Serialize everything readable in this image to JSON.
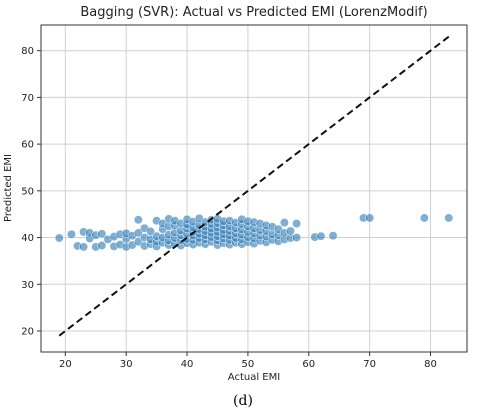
{
  "chart_data": {
    "type": "scatter",
    "title": "Bagging (SVR): Actual vs Predicted EMI (LorenzModif)",
    "xlabel": "Actual EMI",
    "ylabel": "Predicted EMI",
    "xlim": [
      16,
      86
    ],
    "ylim": [
      15.5,
      85.5
    ],
    "xticks": [
      20,
      30,
      40,
      50,
      60,
      70,
      80
    ],
    "yticks": [
      20,
      30,
      40,
      50,
      60,
      70,
      80
    ],
    "grid": true,
    "caption": "(d)",
    "point_color": "#2a78b5",
    "reference_line": {
      "style": "dashed",
      "color": "#111111",
      "x": [
        19,
        83
      ],
      "y": [
        19,
        83
      ]
    },
    "points": [
      [
        19,
        39.9
      ],
      [
        21,
        40.7
      ],
      [
        22,
        38.2
      ],
      [
        23,
        38.0
      ],
      [
        23,
        41.2
      ],
      [
        24,
        39.8
      ],
      [
        24,
        41.0
      ],
      [
        25,
        38.0
      ],
      [
        25,
        40.5
      ],
      [
        26,
        38.3
      ],
      [
        26,
        40.8
      ],
      [
        27,
        39.6
      ],
      [
        28,
        38.1
      ],
      [
        28,
        40.2
      ],
      [
        29,
        38.5
      ],
      [
        29,
        40.7
      ],
      [
        30,
        38.0
      ],
      [
        30,
        39.7
      ],
      [
        30,
        40.9
      ],
      [
        31,
        38.4
      ],
      [
        31,
        40.4
      ],
      [
        32,
        39.1
      ],
      [
        32,
        41.0
      ],
      [
        32,
        43.8
      ],
      [
        33,
        38.2
      ],
      [
        33,
        40.0
      ],
      [
        33,
        42.0
      ],
      [
        34,
        38.6
      ],
      [
        34,
        39.6
      ],
      [
        34,
        41.3
      ],
      [
        35,
        38.1
      ],
      [
        35,
        39.1
      ],
      [
        35,
        40.3
      ],
      [
        35,
        43.6
      ],
      [
        36,
        38.9
      ],
      [
        36,
        40.0
      ],
      [
        36,
        41.8
      ],
      [
        36,
        43.0
      ],
      [
        37,
        38.4
      ],
      [
        37,
        39.4
      ],
      [
        37,
        40.6
      ],
      [
        37,
        42.4
      ],
      [
        37,
        44.0
      ],
      [
        38,
        38.7
      ],
      [
        38,
        39.9
      ],
      [
        38,
        41.1
      ],
      [
        38,
        42.6
      ],
      [
        38,
        43.6
      ],
      [
        39,
        38.3
      ],
      [
        39,
        39.4
      ],
      [
        39,
        40.5
      ],
      [
        39,
        41.5
      ],
      [
        39,
        43.0
      ],
      [
        40,
        38.8
      ],
      [
        40,
        39.7
      ],
      [
        40,
        40.8
      ],
      [
        40,
        41.9
      ],
      [
        40,
        42.8
      ],
      [
        40,
        43.9
      ],
      [
        41,
        38.5
      ],
      [
        41,
        39.5
      ],
      [
        41,
        40.4
      ],
      [
        41,
        41.2
      ],
      [
        41,
        42.2
      ],
      [
        41,
        43.4
      ],
      [
        42,
        38.9
      ],
      [
        42,
        39.9
      ],
      [
        42,
        40.8
      ],
      [
        42,
        41.8
      ],
      [
        42,
        42.7
      ],
      [
        42,
        44.1
      ],
      [
        43,
        38.6
      ],
      [
        43,
        39.6
      ],
      [
        43,
        40.5
      ],
      [
        43,
        41.4
      ],
      [
        43,
        42.3
      ],
      [
        43,
        43.3
      ],
      [
        44,
        39.1
      ],
      [
        44,
        40.1
      ],
      [
        44,
        41.0
      ],
      [
        44,
        41.9
      ],
      [
        44,
        42.9
      ],
      [
        44,
        43.8
      ],
      [
        45,
        38.4
      ],
      [
        45,
        39.4
      ],
      [
        45,
        40.3
      ],
      [
        45,
        41.2
      ],
      [
        45,
        42.1
      ],
      [
        45,
        43.1
      ],
      [
        45,
        44.0
      ],
      [
        46,
        38.8
      ],
      [
        46,
        39.8
      ],
      [
        46,
        40.7
      ],
      [
        46,
        41.6
      ],
      [
        46,
        42.6
      ],
      [
        46,
        43.5
      ],
      [
        47,
        38.5
      ],
      [
        47,
        39.5
      ],
      [
        47,
        40.4
      ],
      [
        47,
        41.4
      ],
      [
        47,
        42.4
      ],
      [
        47,
        43.6
      ],
      [
        48,
        38.9
      ],
      [
        48,
        39.9
      ],
      [
        48,
        40.9
      ],
      [
        48,
        42.0
      ],
      [
        48,
        43.2
      ],
      [
        49,
        38.6
      ],
      [
        49,
        39.6
      ],
      [
        49,
        40.6
      ],
      [
        49,
        41.7
      ],
      [
        49,
        42.9
      ],
      [
        49,
        43.9
      ],
      [
        50,
        39.0
      ],
      [
        50,
        40.1
      ],
      [
        50,
        41.2
      ],
      [
        50,
        42.4
      ],
      [
        50,
        43.5
      ],
      [
        51,
        38.7
      ],
      [
        51,
        39.8
      ],
      [
        51,
        40.9
      ],
      [
        51,
        42.0
      ],
      [
        51,
        43.3
      ],
      [
        52,
        39.3
      ],
      [
        52,
        40.4
      ],
      [
        52,
        41.6
      ],
      [
        52,
        43.0
      ],
      [
        53,
        39.0
      ],
      [
        53,
        40.2
      ],
      [
        53,
        41.4
      ],
      [
        53,
        42.6
      ],
      [
        54,
        39.5
      ],
      [
        54,
        40.7
      ],
      [
        54,
        42.3
      ],
      [
        55,
        39.2
      ],
      [
        55,
        40.5
      ],
      [
        55,
        41.8
      ],
      [
        56,
        39.6
      ],
      [
        56,
        41.0
      ],
      [
        56,
        43.2
      ],
      [
        57,
        39.9
      ],
      [
        57,
        41.4
      ],
      [
        58,
        40.0
      ],
      [
        58,
        43.0
      ],
      [
        61,
        40.1
      ],
      [
        62,
        40.3
      ],
      [
        64,
        40.4
      ],
      [
        69,
        44.2
      ],
      [
        70,
        44.2
      ],
      [
        79,
        44.2
      ],
      [
        83,
        44.2
      ]
    ]
  }
}
